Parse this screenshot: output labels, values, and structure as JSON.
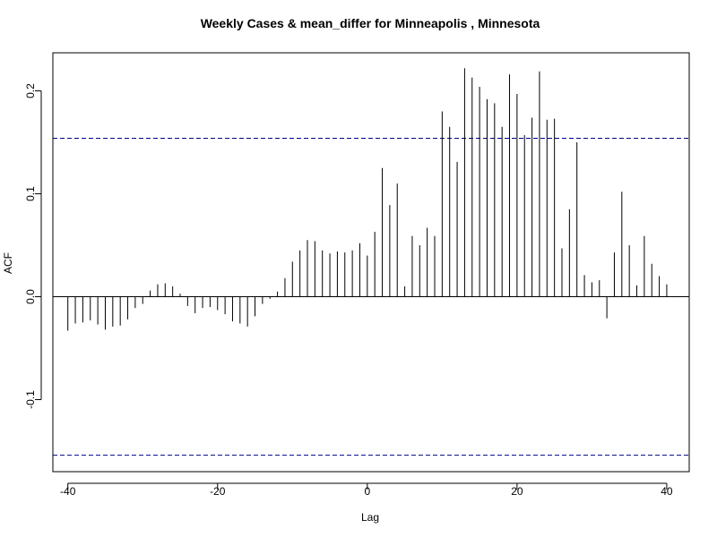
{
  "chart_data": {
    "type": "bar",
    "title": "Weekly Cases & mean_differ for Minneapolis , Minnesota",
    "xlabel": "Lag",
    "ylabel": "ACF",
    "xlim": [
      -42,
      43
    ],
    "ylim": [
      -0.17,
      0.237
    ],
    "xticks": [
      -40,
      -20,
      0,
      20,
      40
    ],
    "xtick_labels": [
      "-40",
      "-20",
      "0",
      "20",
      "40"
    ],
    "yticks": [
      -0.1,
      0.0,
      0.1,
      0.2
    ],
    "ytick_labels": [
      "-0.1",
      "0.0",
      "0.1",
      "0.2"
    ],
    "confidence_band": 0.154,
    "colors": {
      "bars": "#000000",
      "confidence": "#00008B",
      "zero_line": "#000000",
      "frame": "#000000"
    },
    "grid": false,
    "legend": "none",
    "x": [
      -40,
      -39,
      -38,
      -37,
      -36,
      -35,
      -34,
      -33,
      -32,
      -31,
      -30,
      -29,
      -28,
      -27,
      -26,
      -25,
      -24,
      -23,
      -22,
      -21,
      -20,
      -19,
      -18,
      -17,
      -16,
      -15,
      -14,
      -13,
      -12,
      -11,
      -10,
      -9,
      -8,
      -7,
      -6,
      -5,
      -4,
      -3,
      -2,
      -1,
      0,
      1,
      2,
      3,
      4,
      5,
      6,
      7,
      8,
      9,
      10,
      11,
      12,
      13,
      14,
      15,
      16,
      17,
      18,
      19,
      20,
      21,
      22,
      23,
      24,
      25,
      26,
      27,
      28,
      29,
      30,
      31,
      32,
      33,
      34,
      35,
      36,
      37,
      38,
      39,
      40
    ],
    "values": [
      -0.033,
      -0.026,
      -0.025,
      -0.023,
      -0.027,
      -0.032,
      -0.029,
      -0.028,
      -0.022,
      -0.011,
      -0.007,
      0.006,
      0.012,
      0.013,
      0.01,
      0.003,
      -0.009,
      -0.016,
      -0.011,
      -0.01,
      -0.013,
      -0.017,
      -0.024,
      -0.026,
      -0.029,
      -0.019,
      -0.007,
      -0.002,
      0.005,
      0.018,
      0.034,
      0.045,
      0.055,
      0.054,
      0.045,
      0.042,
      0.044,
      0.043,
      0.045,
      0.052,
      0.04,
      0.063,
      0.125,
      0.089,
      0.11,
      0.01,
      0.059,
      0.05,
      0.067,
      0.059,
      0.18,
      0.165,
      0.131,
      0.222,
      0.213,
      0.204,
      0.192,
      0.188,
      0.165,
      0.216,
      0.197,
      0.157,
      0.174,
      0.219,
      0.172,
      0.173,
      0.047,
      0.085,
      0.15,
      0.021,
      0.014,
      0.016,
      -0.021,
      0.043,
      0.102,
      0.05,
      0.011,
      0.059,
      0.032,
      0.02,
      0.012
    ]
  }
}
